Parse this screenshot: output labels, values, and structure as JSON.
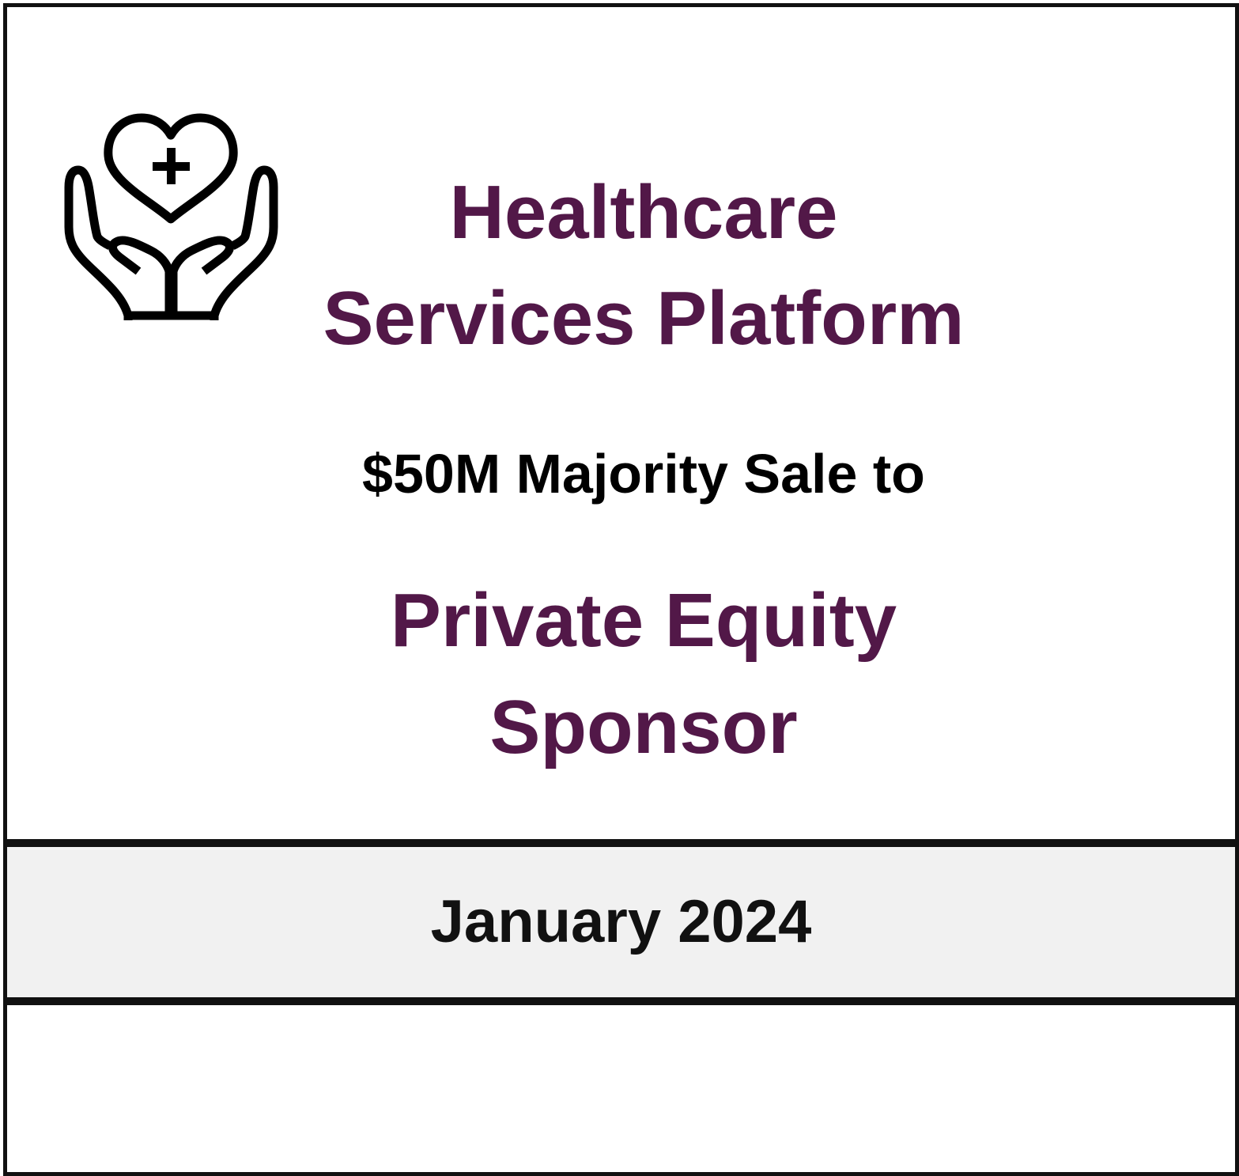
{
  "card": {
    "icon_name": "heart-hands-icon",
    "title_lines": [
      "Healthcare",
      "Services Platform"
    ],
    "transaction": "$50M Majority Sale to",
    "buyer_lines": [
      "Private Equity",
      "Sponsor"
    ],
    "date": "January 2024"
  },
  "colors": {
    "accent": "#521848",
    "text": "#000000",
    "border": "#111111",
    "band": "#f1f1f1"
  }
}
